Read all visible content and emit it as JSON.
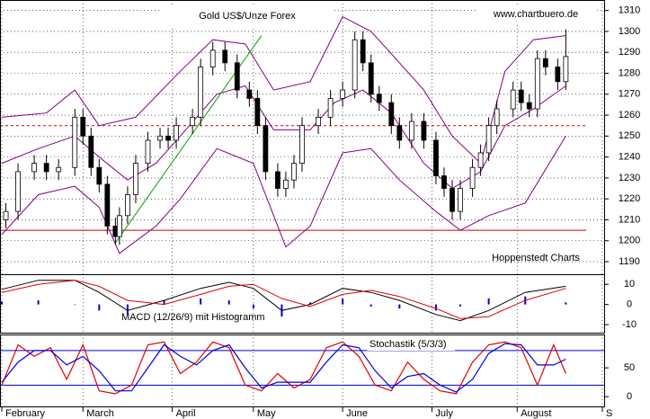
{
  "chart_data": {
    "type": "candlestick",
    "title": "Gold US$/Unze Forex",
    "source": "www.chartbuero.de",
    "credit": "Hoppenstedt Charts",
    "xlim": [
      0,
      148
    ],
    "xticks": [
      {
        "value": 0,
        "label": "February"
      },
      {
        "value": 20,
        "label": "March"
      },
      {
        "value": 42,
        "label": "April"
      },
      {
        "value": 62,
        "label": "May"
      },
      {
        "value": 84,
        "label": "June"
      },
      {
        "value": 106,
        "label": "July"
      },
      {
        "value": 127,
        "label": "August"
      },
      {
        "value": 148,
        "label": "S"
      }
    ],
    "grid": true,
    "price": {
      "ylim": [
        1184,
        1315
      ],
      "yticks": [
        1190,
        1200,
        1210,
        1220,
        1230,
        1240,
        1250,
        1260,
        1270,
        1280,
        1290,
        1300,
        1310
      ],
      "up_color": "#ffffff",
      "down_color": "#000000",
      "candles": {
        "x": [
          1,
          4,
          8,
          11,
          14,
          18,
          20,
          22,
          24,
          26,
          28,
          29,
          31,
          33,
          36,
          39,
          41,
          43,
          47,
          49,
          52,
          55,
          58,
          61,
          63,
          65,
          68,
          70,
          72,
          74,
          78,
          81,
          84,
          87,
          89,
          91,
          93,
          96,
          98,
          101,
          104,
          107,
          109,
          111,
          113,
          116,
          118,
          120,
          122,
          126,
          128,
          130,
          132,
          134,
          137,
          139
        ],
        "open": [
          1210,
          1214,
          1233,
          1237,
          1233,
          1235,
          1259,
          1250,
          1235,
          1227,
          1207,
          1202,
          1212,
          1222,
          1237,
          1248,
          1250,
          1248,
          1255,
          1259,
          1283,
          1291,
          1285,
          1272,
          1268,
          1255,
          1233,
          1225,
          1229,
          1237,
          1255,
          1259,
          1268,
          1272,
          1296,
          1285,
          1270,
          1266,
          1255,
          1248,
          1257,
          1248,
          1231,
          1225,
          1214,
          1225,
          1235,
          1242,
          1255,
          1263,
          1272,
          1266,
          1263,
          1287,
          1283,
          1276
        ],
        "high": [
          1218,
          1237,
          1241,
          1241,
          1239,
          1263,
          1263,
          1254,
          1239,
          1231,
          1211,
          1216,
          1226,
          1241,
          1252,
          1254,
          1254,
          1259,
          1263,
          1287,
          1295,
          1295,
          1289,
          1276,
          1272,
          1259,
          1237,
          1233,
          1241,
          1259,
          1263,
          1272,
          1276,
          1300,
          1300,
          1289,
          1274,
          1270,
          1259,
          1261,
          1261,
          1252,
          1235,
          1229,
          1229,
          1239,
          1246,
          1259,
          1267,
          1276,
          1276,
          1270,
          1291,
          1291,
          1287,
          1301
        ],
        "low": [
          1206,
          1210,
          1229,
          1229,
          1229,
          1231,
          1246,
          1231,
          1223,
          1203,
          1198,
          1198,
          1208,
          1218,
          1233,
          1244,
          1244,
          1244,
          1251,
          1255,
          1279,
          1281,
          1268,
          1264,
          1251,
          1229,
          1221,
          1221,
          1225,
          1233,
          1251,
          1255,
          1264,
          1268,
          1281,
          1266,
          1262,
          1251,
          1244,
          1244,
          1244,
          1227,
          1221,
          1210,
          1210,
          1221,
          1231,
          1238,
          1251,
          1259,
          1262,
          1259,
          1259,
          1279,
          1272,
          1272
        ],
        "close": [
          1214,
          1233,
          1237,
          1233,
          1235,
          1259,
          1250,
          1235,
          1227,
          1207,
          1202,
          1212,
          1222,
          1237,
          1248,
          1250,
          1248,
          1255,
          1259,
          1283,
          1291,
          1285,
          1272,
          1268,
          1255,
          1233,
          1225,
          1229,
          1237,
          1255,
          1259,
          1268,
          1272,
          1296,
          1285,
          1270,
          1266,
          1255,
          1248,
          1257,
          1248,
          1231,
          1225,
          1214,
          1225,
          1235,
          1242,
          1255,
          1263,
          1272,
          1266,
          1263,
          1287,
          1283,
          1276,
          1288
        ]
      },
      "bands": [
        {
          "color": "#800080",
          "x": [
            0,
            11,
            18,
            24,
            33,
            44,
            52,
            60,
            67,
            76,
            84,
            91,
            98,
            104,
            111,
            118,
            124,
            131,
            139
          ],
          "values": [
            1259,
            1261,
            1272,
            1255,
            1259,
            1281,
            1296,
            1294,
            1272,
            1276,
            1307,
            1300,
            1285,
            1272,
            1250,
            1237,
            1281,
            1296,
            1298
          ]
        },
        {
          "color": "#800080",
          "x": [
            0,
            9,
            18,
            24,
            31,
            38,
            44,
            53,
            60,
            67,
            76,
            82,
            89,
            96,
            104,
            111,
            118,
            124,
            131,
            139
          ],
          "values": [
            1237,
            1244,
            1250,
            1240,
            1229,
            1237,
            1250,
            1270,
            1274,
            1253,
            1253,
            1266,
            1272,
            1261,
            1237,
            1225,
            1233,
            1255,
            1263,
            1274
          ]
        },
        {
          "color": "#800080",
          "x": [
            0,
            9,
            18,
            24,
            29,
            38,
            44,
            53,
            62,
            67,
            70,
            76,
            84,
            91,
            98,
            107,
            113,
            120,
            129,
            139
          ],
          "values": [
            1203,
            1222,
            1226,
            1216,
            1194,
            1207,
            1220,
            1244,
            1237,
            1212,
            1197,
            1207,
            1242,
            1244,
            1229,
            1214,
            1205,
            1212,
            1218,
            1250
          ]
        }
      ],
      "levels": [
        {
          "value": 1205,
          "color": "#cc0000",
          "style": "solid"
        },
        {
          "value": 1255,
          "color": "#cc0000",
          "style": "dashed"
        }
      ],
      "trendline": {
        "x": [
          28,
          64
        ],
        "values": [
          1199,
          1298
        ],
        "color": "#00a000"
      }
    },
    "macd": {
      "label": "MACD (12/26/9) mit Histogramm",
      "ylim": [
        -14,
        15
      ],
      "yticks": [
        -10,
        0,
        10
      ],
      "x": [
        0,
        9,
        18,
        24,
        31,
        40,
        49,
        56,
        62,
        69,
        76,
        84,
        91,
        98,
        107,
        113,
        120,
        129,
        139
      ],
      "lines": [
        {
          "color": "#000000",
          "values": [
            7.5,
            12,
            12,
            6,
            -3,
            2,
            8,
            11,
            8,
            -3,
            0,
            8,
            6,
            2,
            -5,
            -8,
            -3,
            6,
            9
          ]
        },
        {
          "color": "#e00000",
          "values": [
            6,
            10,
            12,
            9,
            2,
            0,
            5,
            9,
            10,
            3,
            -1,
            5,
            7,
            4,
            -2,
            -7,
            -6,
            2,
            8
          ]
        }
      ],
      "histogram": {
        "color": "#0000cc",
        "values": [
          1.5,
          2,
          0,
          -3,
          -5,
          2,
          3,
          2,
          -2,
          -6,
          1,
          3,
          -1,
          -2,
          -3,
          -1,
          3,
          4,
          1
        ]
      }
    },
    "stochastic": {
      "label": "Stochastik (5/3/3)",
      "ylim": [
        -17,
        108
      ],
      "yticks": [
        0,
        50
      ],
      "levels": [
        80,
        20
      ],
      "level_color": "#0000cc",
      "x": [
        0,
        4,
        8,
        12,
        16,
        20,
        24,
        28,
        32,
        36,
        40,
        44,
        48,
        52,
        56,
        60,
        64,
        68,
        72,
        76,
        80,
        84,
        88,
        92,
        96,
        100,
        104,
        108,
        112,
        116,
        120,
        124,
        128,
        132,
        136,
        139
      ],
      "lines": [
        {
          "color": "#e00000",
          "values": [
            20,
            90,
            70,
            85,
            30,
            90,
            10,
            5,
            20,
            90,
            95,
            40,
            60,
            95,
            85,
            20,
            10,
            40,
            15,
            30,
            85,
            95,
            70,
            20,
            10,
            60,
            30,
            10,
            5,
            60,
            90,
            95,
            85,
            20,
            90,
            40
          ]
        },
        {
          "color": "#0000e0",
          "values": [
            25,
            60,
            80,
            80,
            55,
            70,
            45,
            10,
            10,
            50,
            90,
            70,
            55,
            80,
            90,
            50,
            15,
            25,
            25,
            25,
            60,
            90,
            85,
            45,
            15,
            35,
            40,
            20,
            8,
            30,
            75,
            92,
            90,
            55,
            55,
            65
          ]
        }
      ]
    }
  }
}
